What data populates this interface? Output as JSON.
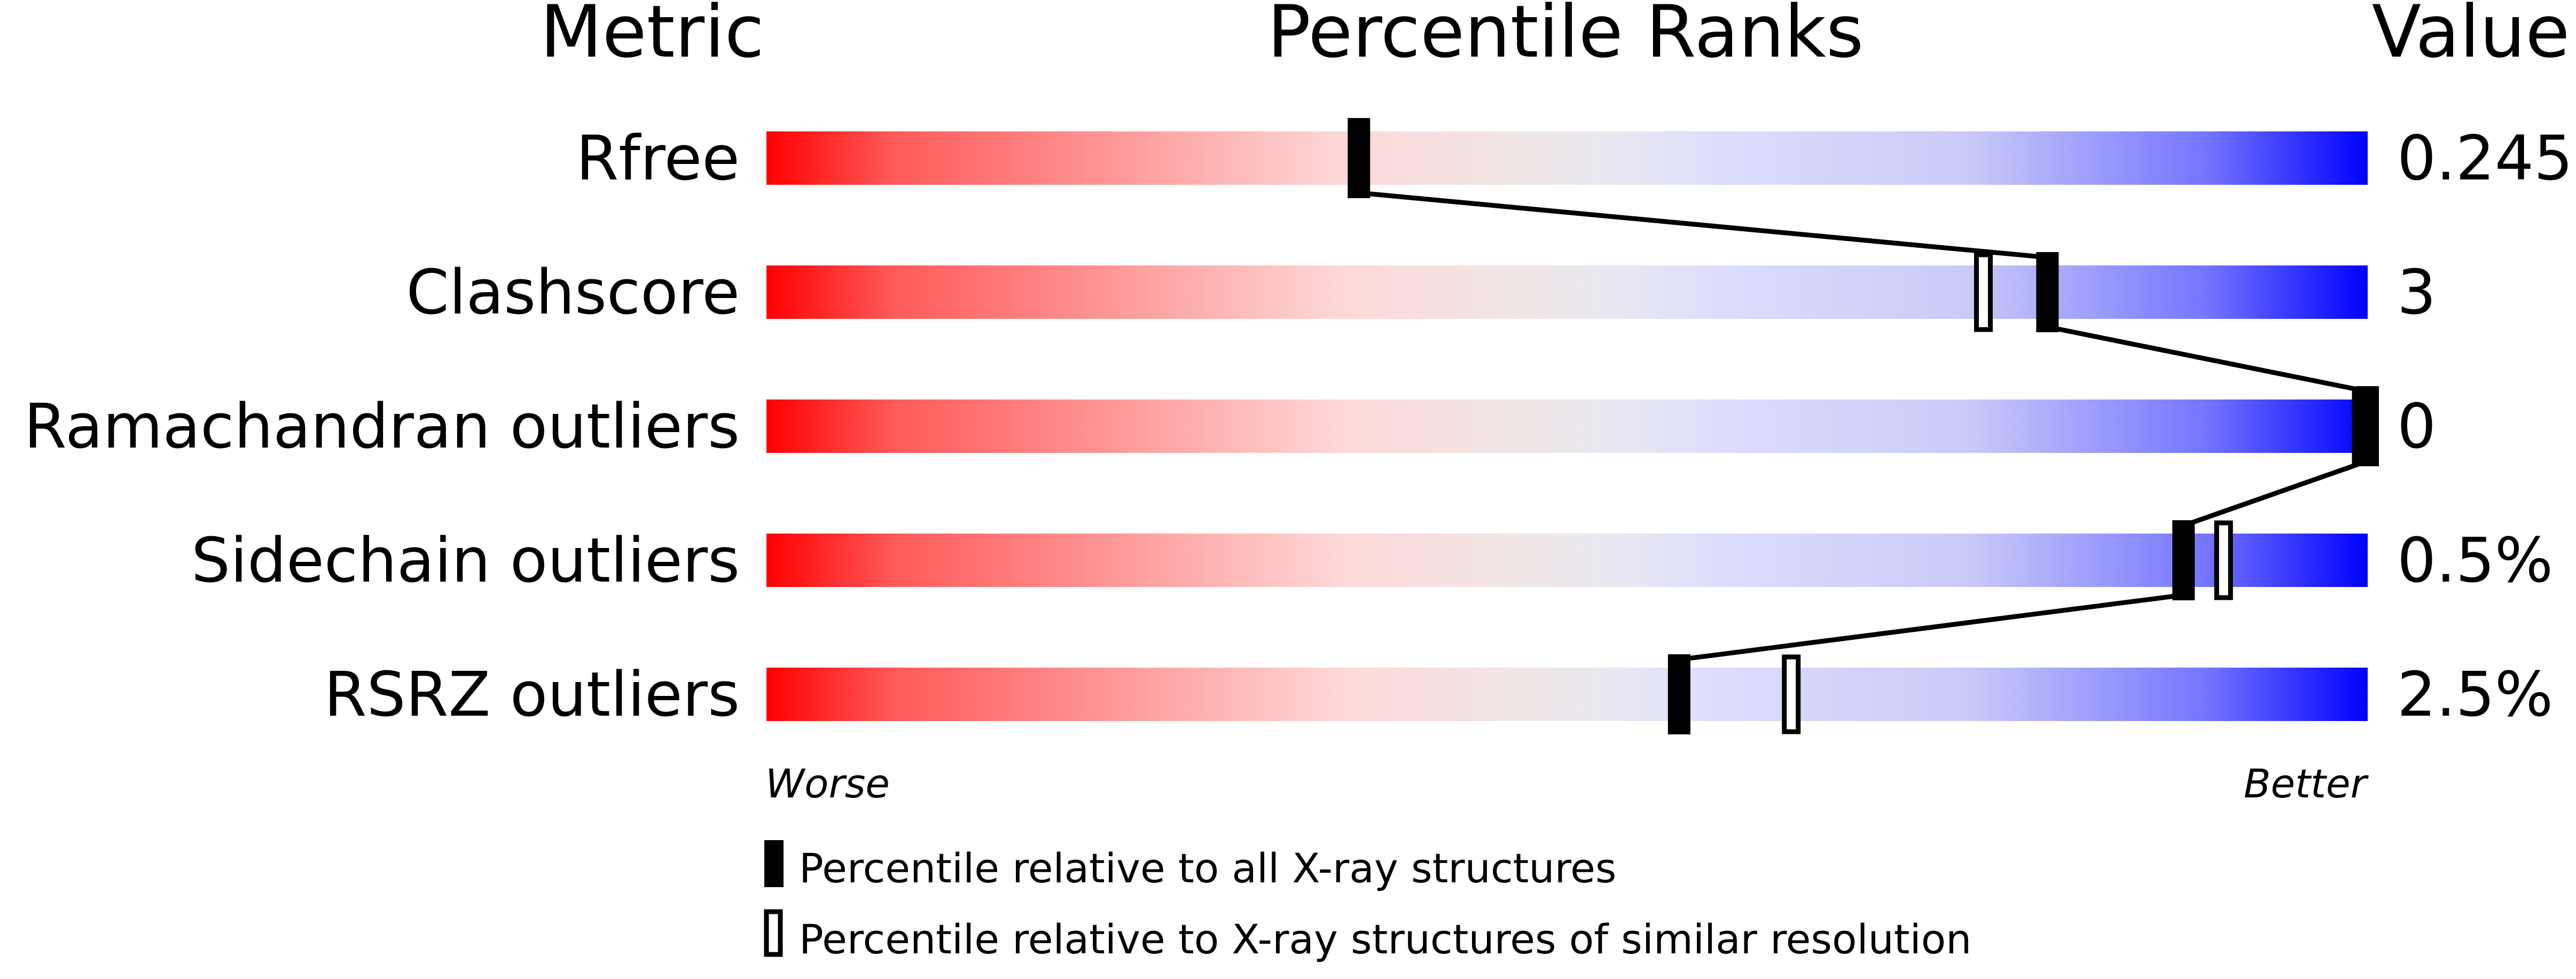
{
  "chart_data": {
    "type": "bar",
    "headers": {
      "metric": "Metric",
      "ranks": "Percentile Ranks",
      "value": "Value"
    },
    "xlim": [
      0,
      100
    ],
    "axis_labels": {
      "left": "Worse",
      "right": "Better"
    },
    "rows": [
      {
        "metric": "Rfree",
        "value": "0.245",
        "percentile_all": 37,
        "percentile_similar": 37
      },
      {
        "metric": "Clashscore",
        "value": "3",
        "percentile_all": 80,
        "percentile_similar": 76
      },
      {
        "metric": "Ramachandran outliers",
        "value": "0",
        "percentile_all": 100,
        "percentile_similar": 100
      },
      {
        "metric": "Sidechain outliers",
        "value": "0.5%",
        "percentile_all": 88.5,
        "percentile_similar": 91
      },
      {
        "metric": "RSRZ outliers",
        "value": "2.5%",
        "percentile_all": 57,
        "percentile_similar": 64
      }
    ],
    "legend": {
      "all": "Percentile relative to all X-ray structures",
      "similar": "Percentile relative to X-ray structures of similar resolution"
    },
    "gradient_colors": [
      "#ff0000",
      "#fdd8d8",
      "#eeeeee",
      "#dcdcfc",
      "#0000ff"
    ]
  }
}
